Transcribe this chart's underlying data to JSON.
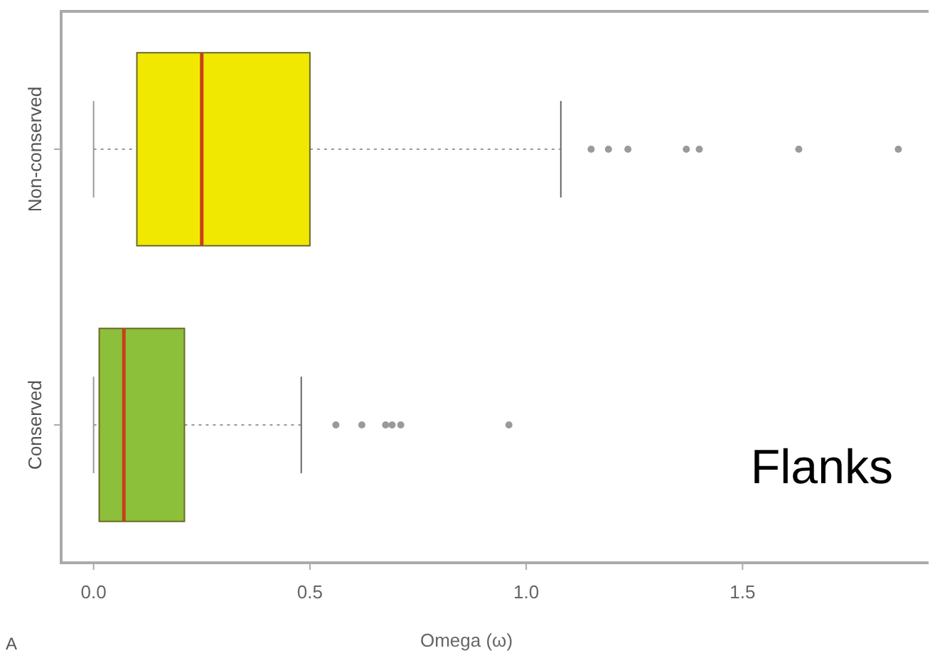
{
  "chart_data": {
    "type": "box",
    "orientation": "horizontal",
    "categories": [
      "Non-conserved",
      "Conserved"
    ],
    "boxes": [
      {
        "low": 0.0,
        "q1": 0.1,
        "median": 0.25,
        "q3": 0.5,
        "high": 1.08,
        "outliers": [
          1.15,
          1.19,
          1.235,
          1.37,
          1.4,
          1.63,
          1.86
        ]
      },
      {
        "low": 0.0,
        "q1": 0.013,
        "median": 0.07,
        "q3": 0.21,
        "high": 0.48,
        "outliers": [
          0.56,
          0.62,
          0.675,
          0.69,
          0.71,
          0.96
        ]
      }
    ],
    "colors": [
      "#f0e800",
      "#8cbf3a"
    ],
    "xlim": [
      -0.075,
      1.93
    ],
    "xticks": [
      {
        "value": 0,
        "label": "0.0"
      },
      0.5,
      {
        "value": 1,
        "label": "1.0"
      },
      1.5
    ],
    "xlabel": "Omega (ω)",
    "annotations": [
      "Flanks",
      "A"
    ]
  }
}
